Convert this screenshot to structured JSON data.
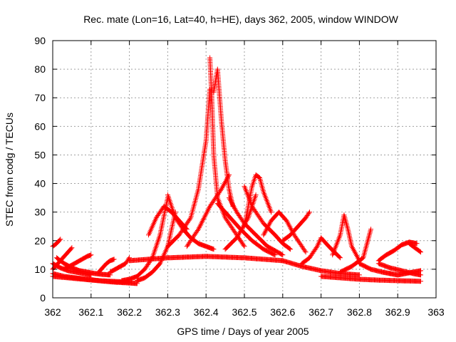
{
  "chart_data": {
    "type": "scatter",
    "title": "Rec. mate (Lon=16, Lat=40, h=HE), days 362, 2005, window WINDOW",
    "xlabel": "GPS time / Days of year 2005",
    "ylabel": "STEC from codg / TECUs",
    "xlim": [
      362,
      363
    ],
    "ylim": [
      0,
      90
    ],
    "x_ticks": [
      362,
      362.1,
      362.2,
      362.3,
      362.4,
      362.5,
      362.6,
      362.7,
      362.8,
      362.9,
      363
    ],
    "x_tick_labels": [
      "362",
      "362.1",
      "362.2",
      "362.3",
      "362.4",
      "362.5",
      "362.6",
      "362.7",
      "362.8",
      "362.9",
      "363"
    ],
    "y_ticks": [
      0,
      10,
      20,
      30,
      40,
      50,
      60,
      70,
      80,
      90
    ],
    "y_tick_labels": [
      "0",
      "10",
      "20",
      "30",
      "40",
      "50",
      "60",
      "70",
      "80",
      "90"
    ],
    "grid": true,
    "marker": "+",
    "marker_color": "#ff0000",
    "series": [
      {
        "x": [
          362.0,
          362.01,
          362.02
        ],
        "y": [
          18,
          19,
          20.5
        ]
      },
      {
        "x": [
          362.0,
          362.02,
          362.04,
          362.06,
          362.08,
          362.1
        ],
        "y": [
          12,
          10.5,
          9.5,
          9.0,
          8.5,
          8.0
        ]
      },
      {
        "x": [
          362.0,
          362.01,
          362.02,
          362.03,
          362.04,
          362.05
        ],
        "y": [
          10,
          11.5,
          13,
          14.5,
          16,
          17.5
        ]
      },
      {
        "x": [
          362.0,
          362.03,
          362.06,
          362.09,
          362.12,
          362.15,
          362.18,
          362.2
        ],
        "y": [
          8.5,
          7.5,
          7,
          6.5,
          6,
          5.8,
          5.6,
          5.5
        ]
      },
      {
        "x": [
          362.03,
          362.05,
          362.07,
          362.09,
          362.1
        ],
        "y": [
          10,
          11.5,
          13,
          14.5,
          15
        ]
      },
      {
        "x": [
          362.01,
          362.03,
          362.05,
          362.07,
          362.09,
          362.11,
          362.13,
          362.15
        ],
        "y": [
          14,
          12,
          10.5,
          9.5,
          9,
          8.5,
          8.2,
          8.0
        ]
      },
      {
        "x": [
          362.0,
          362.04,
          362.08,
          362.12,
          362.16,
          362.2,
          362.22
        ],
        "y": [
          7.5,
          7,
          6.5,
          6,
          5.5,
          5.2,
          5.0
        ]
      },
      {
        "x": [
          362.12,
          362.13,
          362.14,
          362.15,
          362.16
        ],
        "y": [
          9,
          10.5,
          12,
          13,
          13.5
        ]
      },
      {
        "x": [
          362.15,
          362.17,
          362.19,
          362.2
        ],
        "y": [
          9,
          10.5,
          12,
          14
        ]
      },
      {
        "x": [
          362.18,
          362.2,
          362.22,
          362.24,
          362.26,
          362.28,
          362.3
        ],
        "y": [
          6,
          6.5,
          7.5,
          10,
          14,
          22,
          35
        ]
      },
      {
        "x": [
          362.22,
          362.24,
          362.26,
          362.28,
          362.3,
          362.32
        ],
        "y": [
          6,
          7,
          9,
          12,
          18,
          30
        ]
      },
      {
        "x": [
          362.3,
          362.32,
          362.34,
          362.36,
          362.38,
          362.4,
          362.42
        ],
        "y": [
          36,
          28,
          24,
          21,
          19,
          18,
          17
        ]
      },
      {
        "x": [
          362.25,
          362.27,
          362.29,
          362.31,
          362.33,
          362.35
        ],
        "y": [
          22,
          28,
          32,
          30,
          27,
          24
        ]
      },
      {
        "x": [
          362.2,
          362.3,
          362.4,
          362.5,
          362.6
        ],
        "y": [
          13,
          14,
          14.5,
          14,
          13
        ]
      },
      {
        "x": [
          362.3,
          362.33,
          362.36,
          362.38,
          362.4,
          362.41
        ],
        "y": [
          18,
          22,
          28,
          38,
          55,
          73
        ]
      },
      {
        "x": [
          362.41,
          362.415,
          362.42,
          362.43,
          362.45,
          362.48,
          362.5
        ],
        "y": [
          84,
          70,
          50,
          35,
          28,
          22,
          18
        ]
      },
      {
        "x": [
          362.42,
          362.43,
          362.44,
          362.45,
          362.46,
          362.47
        ],
        "y": [
          72,
          80,
          62,
          48,
          38,
          32
        ]
      },
      {
        "x": [
          362.43,
          362.45,
          362.47,
          362.49,
          362.52,
          362.55,
          362.58
        ],
        "y": [
          33,
          30,
          27,
          24,
          20,
          17,
          15
        ]
      },
      {
        "x": [
          362.35,
          362.38,
          362.41,
          362.44,
          362.46
        ],
        "y": [
          18,
          24,
          32,
          38,
          43
        ]
      },
      {
        "x": [
          362.46,
          362.48,
          362.5,
          362.53,
          362.56,
          362.6
        ],
        "y": [
          35,
          30,
          26,
          22,
          18,
          15
        ]
      },
      {
        "x": [
          362.5,
          362.51,
          362.52,
          362.53,
          362.54,
          362.55,
          362.57
        ],
        "y": [
          25,
          32,
          39,
          43,
          42,
          37,
          30
        ]
      },
      {
        "x": [
          362.45,
          362.48,
          362.51,
          362.53
        ],
        "y": [
          17,
          21,
          28,
          36
        ]
      },
      {
        "x": [
          362.5,
          362.52,
          362.55,
          362.58,
          362.6,
          362.62
        ],
        "y": [
          39,
          32,
          26,
          22,
          19,
          17
        ]
      },
      {
        "x": [
          362.55,
          362.57,
          362.59,
          362.61,
          362.63,
          362.66
        ],
        "y": [
          22,
          27,
          30,
          27,
          22,
          16
        ]
      },
      {
        "x": [
          362.6,
          362.62,
          362.64,
          362.66,
          362.67
        ],
        "y": [
          20,
          22,
          25,
          28,
          30
        ]
      },
      {
        "x": [
          362.6,
          362.65,
          362.7,
          362.75,
          362.8
        ],
        "y": [
          13,
          11,
          9.5,
          8.5,
          8
        ]
      },
      {
        "x": [
          362.65,
          362.67,
          362.69,
          362.7,
          362.72,
          362.75
        ],
        "y": [
          12,
          14,
          18,
          21,
          18,
          14
        ]
      },
      {
        "x": [
          362.7,
          362.75,
          362.8,
          362.85,
          362.9,
          362.96
        ],
        "y": [
          7.5,
          7,
          6.5,
          6.2,
          6,
          5.8
        ]
      },
      {
        "x": [
          362.73,
          362.75,
          362.76,
          362.77,
          362.78,
          362.8
        ],
        "y": [
          15,
          22,
          29,
          24,
          18,
          13
        ]
      },
      {
        "x": [
          362.75,
          362.78,
          362.81,
          362.82,
          362.83
        ],
        "y": [
          9,
          11,
          14,
          19,
          24
        ]
      },
      {
        "x": [
          362.8,
          362.83,
          362.86,
          362.88
        ],
        "y": [
          12,
          10,
          9,
          8.5
        ]
      },
      {
        "x": [
          362.85,
          362.87,
          362.89,
          362.9,
          362.91,
          362.93,
          362.95
        ],
        "y": [
          13,
          15,
          16.5,
          17.5,
          18.5,
          19.5,
          19
        ]
      },
      {
        "x": [
          362.93,
          362.94,
          362.95,
          362.96
        ],
        "y": [
          19,
          18,
          17,
          16
        ]
      },
      {
        "x": [
          362.88,
          362.9,
          362.92,
          362.94,
          362.96
        ],
        "y": [
          8.5,
          8,
          8.5,
          9,
          9.5
        ]
      },
      {
        "x": [
          362.85,
          362.88,
          362.91,
          362.94,
          362.96
        ],
        "y": [
          12,
          10.5,
          9.5,
          8.5,
          8
        ]
      }
    ]
  }
}
